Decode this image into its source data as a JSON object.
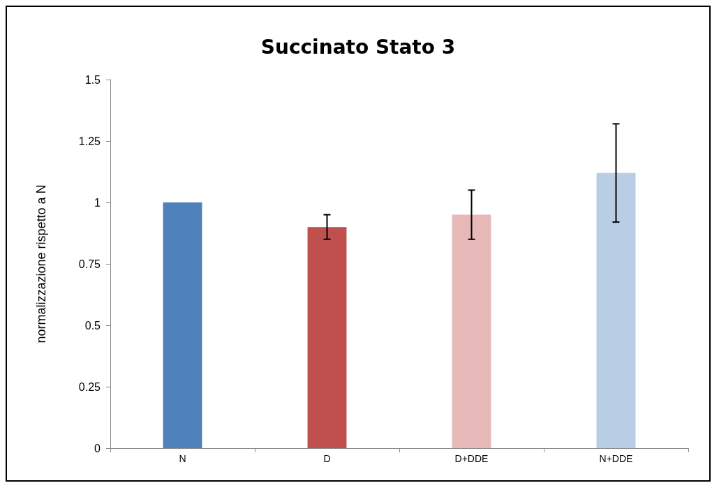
{
  "chart_data": {
    "type": "bar",
    "title": "Succinato Stato 3",
    "ylabel": "normalizzazione rispetto a N",
    "categories": [
      "N",
      "D",
      "D+DDE",
      "N+DDE"
    ],
    "values": [
      1.0,
      0.9,
      0.95,
      1.12
    ],
    "colors": [
      "#4f81bd",
      "#c0504d",
      "#e6b9b8",
      "#b9cde5"
    ],
    "errors": [
      null,
      0.05,
      0.1,
      0.2
    ],
    "ylim": [
      0,
      1.5
    ],
    "yticks": [
      0,
      0.25,
      0.5,
      0.75,
      1,
      1.25,
      1.5
    ],
    "grid": false
  }
}
